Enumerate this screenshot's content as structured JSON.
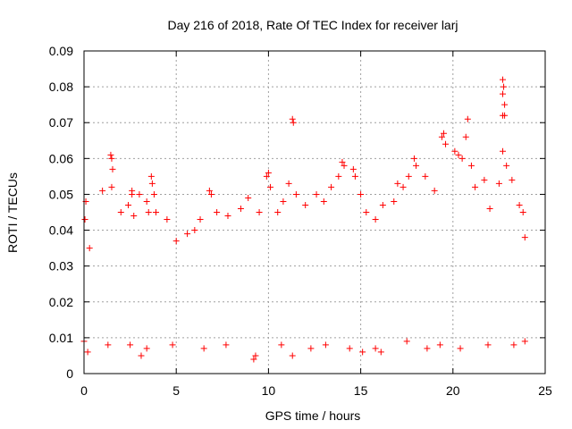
{
  "chart_data": {
    "type": "scatter",
    "title": "Day 216 of 2018, Rate Of TEC Index for receiver larj",
    "xlabel": "GPS time / hours",
    "ylabel": "ROTI / TECUs",
    "xlim": [
      0,
      25
    ],
    "ylim": [
      0,
      0.09
    ],
    "x_ticks": [
      "0",
      "5",
      "10",
      "15",
      "20",
      "25"
    ],
    "y_ticks": [
      "0",
      "0.01",
      "0.02",
      "0.03",
      "0.04",
      "0.05",
      "0.06",
      "0.07",
      "0.08",
      "0.09"
    ],
    "grid": true,
    "legend": "none",
    "marker": "plus",
    "color": "#ff0000",
    "series": [
      {
        "points": [
          [
            0.05,
            0.043
          ],
          [
            0.1,
            0.048
          ],
          [
            0.3,
            0.035
          ],
          [
            1.0,
            0.051
          ],
          [
            1.45,
            0.061
          ],
          [
            1.5,
            0.06
          ],
          [
            1.55,
            0.057
          ],
          [
            1.5,
            0.052
          ],
          [
            2.0,
            0.045
          ],
          [
            2.4,
            0.047
          ],
          [
            2.6,
            0.051
          ],
          [
            2.6,
            0.05
          ],
          [
            2.7,
            0.044
          ],
          [
            3.0,
            0.05
          ],
          [
            3.4,
            0.048
          ],
          [
            3.5,
            0.045
          ],
          [
            3.65,
            0.055
          ],
          [
            3.7,
            0.053
          ],
          [
            3.8,
            0.05
          ],
          [
            3.9,
            0.045
          ],
          [
            4.5,
            0.043
          ],
          [
            5.0,
            0.037
          ],
          [
            5.6,
            0.039
          ],
          [
            6.0,
            0.04
          ],
          [
            6.3,
            0.043
          ],
          [
            6.8,
            0.051
          ],
          [
            6.9,
            0.05
          ],
          [
            7.2,
            0.045
          ],
          [
            7.8,
            0.044
          ],
          [
            8.5,
            0.046
          ],
          [
            8.9,
            0.049
          ],
          [
            9.5,
            0.045
          ],
          [
            9.9,
            0.055
          ],
          [
            10.0,
            0.056
          ],
          [
            10.1,
            0.052
          ],
          [
            10.5,
            0.045
          ],
          [
            10.8,
            0.048
          ],
          [
            11.1,
            0.053
          ],
          [
            11.3,
            0.071
          ],
          [
            11.35,
            0.07
          ],
          [
            11.5,
            0.05
          ],
          [
            12.0,
            0.047
          ],
          [
            12.6,
            0.05
          ],
          [
            13.0,
            0.048
          ],
          [
            13.4,
            0.052
          ],
          [
            13.8,
            0.055
          ],
          [
            14.0,
            0.059
          ],
          [
            14.1,
            0.058
          ],
          [
            14.6,
            0.057
          ],
          [
            14.7,
            0.055
          ],
          [
            15.0,
            0.05
          ],
          [
            15.3,
            0.045
          ],
          [
            15.8,
            0.043
          ],
          [
            16.2,
            0.047
          ],
          [
            16.8,
            0.048
          ],
          [
            17.0,
            0.053
          ],
          [
            17.3,
            0.052
          ],
          [
            17.6,
            0.055
          ],
          [
            17.9,
            0.06
          ],
          [
            18.0,
            0.058
          ],
          [
            18.5,
            0.055
          ],
          [
            19.0,
            0.051
          ],
          [
            19.4,
            0.066
          ],
          [
            19.5,
            0.067
          ],
          [
            19.6,
            0.064
          ],
          [
            20.1,
            0.062
          ],
          [
            20.3,
            0.061
          ],
          [
            20.5,
            0.06
          ],
          [
            20.7,
            0.066
          ],
          [
            20.8,
            0.071
          ],
          [
            21.0,
            0.058
          ],
          [
            21.2,
            0.052
          ],
          [
            21.7,
            0.054
          ],
          [
            22.0,
            0.046
          ],
          [
            22.5,
            0.053
          ],
          [
            22.7,
            0.082
          ],
          [
            22.75,
            0.08
          ],
          [
            22.7,
            0.078
          ],
          [
            22.8,
            0.075
          ],
          [
            22.7,
            0.072
          ],
          [
            22.8,
            0.072
          ],
          [
            22.7,
            0.062
          ],
          [
            22.9,
            0.058
          ],
          [
            23.2,
            0.054
          ],
          [
            23.6,
            0.047
          ],
          [
            23.8,
            0.045
          ],
          [
            23.9,
            0.038
          ],
          [
            0.0,
            0.009
          ],
          [
            0.2,
            0.006
          ],
          [
            1.3,
            0.008
          ],
          [
            2.5,
            0.008
          ],
          [
            3.1,
            0.005
          ],
          [
            3.4,
            0.007
          ],
          [
            4.8,
            0.008
          ],
          [
            6.5,
            0.007
          ],
          [
            7.7,
            0.008
          ],
          [
            9.2,
            0.004
          ],
          [
            9.3,
            0.005
          ],
          [
            10.7,
            0.008
          ],
          [
            11.3,
            0.005
          ],
          [
            12.3,
            0.007
          ],
          [
            13.1,
            0.008
          ],
          [
            14.4,
            0.007
          ],
          [
            15.1,
            0.006
          ],
          [
            15.8,
            0.007
          ],
          [
            16.1,
            0.006
          ],
          [
            17.5,
            0.009
          ],
          [
            18.6,
            0.007
          ],
          [
            19.3,
            0.008
          ],
          [
            20.4,
            0.007
          ],
          [
            21.9,
            0.008
          ],
          [
            23.3,
            0.008
          ],
          [
            23.9,
            0.009
          ]
        ]
      }
    ]
  }
}
